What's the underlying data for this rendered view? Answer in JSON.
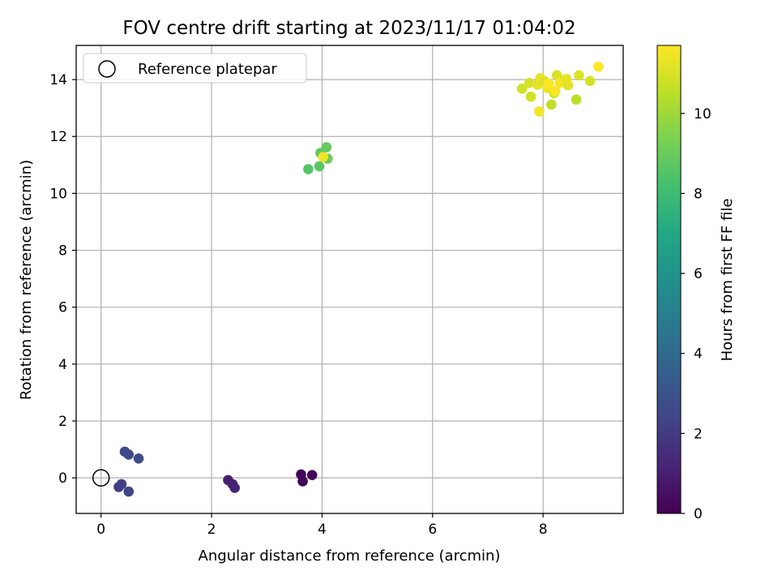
{
  "chart_data": {
    "type": "scatter",
    "title": "FOV centre drift starting at 2023/11/17 01:04:02",
    "xlabel": "Angular distance from reference (arcmin)",
    "ylabel": "Rotation from reference (arcmin)",
    "xlim": [
      -0.45,
      9.45
    ],
    "ylim": [
      -1.25,
      15.2
    ],
    "xticks": [
      0,
      2,
      4,
      6,
      8
    ],
    "yticks": [
      0,
      2,
      4,
      6,
      8,
      10,
      12,
      14
    ],
    "grid": true,
    "legend": {
      "placement": "top-left",
      "entries": [
        "Reference platepar"
      ]
    },
    "reference_point": {
      "x": 0,
      "y": 0
    },
    "colorbar": {
      "label": "Hours from first FF file",
      "colormap": "viridis",
      "range": [
        0,
        11.7
      ],
      "ticks": [
        0,
        2,
        4,
        6,
        8,
        10
      ]
    },
    "points": [
      {
        "x": 3.62,
        "y": 0.12,
        "h": 0.0
      },
      {
        "x": 3.65,
        "y": -0.12,
        "h": 0.1
      },
      {
        "x": 3.82,
        "y": 0.1,
        "h": 0.2
      },
      {
        "x": 2.3,
        "y": -0.08,
        "h": 1.0
      },
      {
        "x": 2.38,
        "y": -0.22,
        "h": 1.1
      },
      {
        "x": 2.42,
        "y": -0.35,
        "h": 1.2
      },
      {
        "x": 0.32,
        "y": -0.32,
        "h": 2.1
      },
      {
        "x": 0.37,
        "y": -0.22,
        "h": 2.2
      },
      {
        "x": 0.5,
        "y": -0.48,
        "h": 2.3
      },
      {
        "x": 0.43,
        "y": 0.92,
        "h": 2.5
      },
      {
        "x": 0.5,
        "y": 0.82,
        "h": 2.6
      },
      {
        "x": 0.68,
        "y": 0.68,
        "h": 2.8
      },
      {
        "x": 3.75,
        "y": 10.85,
        "h": 8.6
      },
      {
        "x": 3.95,
        "y": 10.95,
        "h": 8.7
      },
      {
        "x": 3.97,
        "y": 11.42,
        "h": 8.8
      },
      {
        "x": 4.08,
        "y": 11.62,
        "h": 8.9
      },
      {
        "x": 4.1,
        "y": 11.22,
        "h": 9.0
      },
      {
        "x": 4.02,
        "y": 11.28,
        "h": 11.4
      },
      {
        "x": 7.62,
        "y": 13.68,
        "h": 10.8
      },
      {
        "x": 7.75,
        "y": 13.88,
        "h": 11.0
      },
      {
        "x": 7.78,
        "y": 13.4,
        "h": 10.9
      },
      {
        "x": 7.9,
        "y": 13.82,
        "h": 11.2
      },
      {
        "x": 7.95,
        "y": 14.05,
        "h": 11.3
      },
      {
        "x": 7.93,
        "y": 12.88,
        "h": 11.5
      },
      {
        "x": 8.02,
        "y": 13.95,
        "h": 11.1
      },
      {
        "x": 8.08,
        "y": 13.7,
        "h": 11.4
      },
      {
        "x": 8.15,
        "y": 13.12,
        "h": 10.6
      },
      {
        "x": 8.2,
        "y": 13.52,
        "h": 10.9
      },
      {
        "x": 8.25,
        "y": 14.15,
        "h": 11.0
      },
      {
        "x": 8.3,
        "y": 13.88,
        "h": 11.6
      },
      {
        "x": 8.42,
        "y": 14.02,
        "h": 11.3
      },
      {
        "x": 8.45,
        "y": 13.8,
        "h": 11.2
      },
      {
        "x": 8.6,
        "y": 13.3,
        "h": 10.5
      },
      {
        "x": 8.65,
        "y": 14.15,
        "h": 11.1
      },
      {
        "x": 8.85,
        "y": 13.95,
        "h": 11.0
      },
      {
        "x": 9.0,
        "y": 14.45,
        "h": 11.7
      },
      {
        "x": 8.1,
        "y": 13.85,
        "h": 11.7
      },
      {
        "x": 8.22,
        "y": 13.6,
        "h": 11.6
      }
    ]
  }
}
